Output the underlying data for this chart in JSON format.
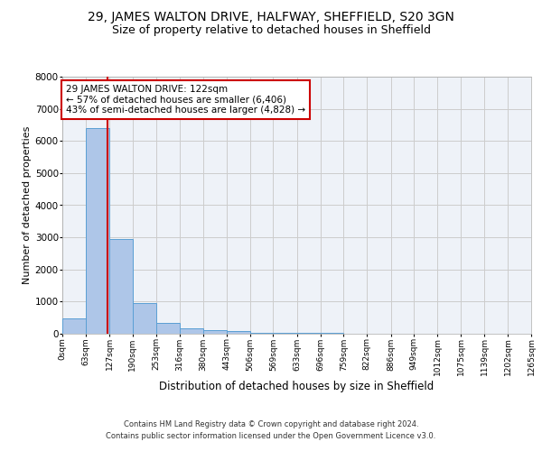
{
  "title": "29, JAMES WALTON DRIVE, HALFWAY, SHEFFIELD, S20 3GN",
  "subtitle": "Size of property relative to detached houses in Sheffield",
  "xlabel": "Distribution of detached houses by size in Sheffield",
  "ylabel": "Number of detached properties",
  "footer_line1": "Contains HM Land Registry data © Crown copyright and database right 2024.",
  "footer_line2": "Contains public sector information licensed under the Open Government Licence v3.0.",
  "annotation_title": "29 JAMES WALTON DRIVE: 122sqm",
  "annotation_line1": "← 57% of detached houses are smaller (6,406)",
  "annotation_line2": "43% of semi-detached houses are larger (4,828) →",
  "property_size": 122,
  "bin_edges": [
    0,
    63,
    127,
    190,
    253,
    316,
    380,
    443,
    506,
    569,
    633,
    696,
    759,
    822,
    886,
    949,
    1012,
    1075,
    1139,
    1202,
    1265
  ],
  "bin_labels": [
    "0sqm",
    "63sqm",
    "127sqm",
    "190sqm",
    "253sqm",
    "316sqm",
    "380sqm",
    "443sqm",
    "506sqm",
    "569sqm",
    "633sqm",
    "696sqm",
    "759sqm",
    "822sqm",
    "886sqm",
    "949sqm",
    "1012sqm",
    "1075sqm",
    "1139sqm",
    "1202sqm",
    "1265sqm"
  ],
  "bar_heights": [
    490,
    6390,
    2950,
    950,
    330,
    175,
    100,
    75,
    40,
    25,
    20,
    15,
    10,
    8,
    5,
    4,
    3,
    2,
    1,
    1
  ],
  "bar_color": "#aec6e8",
  "bar_edge_color": "#5a9fd4",
  "vline_color": "#cc0000",
  "vline_x": 122,
  "ylim": [
    0,
    8000
  ],
  "yticks": [
    0,
    1000,
    2000,
    3000,
    4000,
    5000,
    6000,
    7000,
    8000
  ],
  "grid_color": "#cccccc",
  "background_color": "#eef2f8",
  "title_fontsize": 10,
  "subtitle_fontsize": 9,
  "annotation_box_color": "#ffffff",
  "annotation_box_edge": "#cc0000",
  "annotation_fontsize": 7.5,
  "ylabel_fontsize": 8,
  "xlabel_fontsize": 8.5,
  "tick_fontsize": 6.5,
  "ytick_fontsize": 7.5,
  "footer_fontsize": 6
}
